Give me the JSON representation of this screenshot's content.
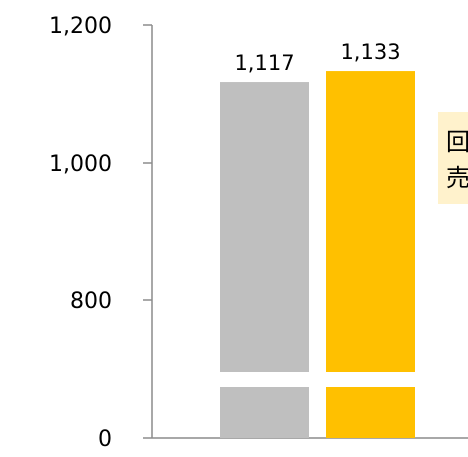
{
  "chart_data": {
    "type": "bar",
    "categories": [
      "",
      ""
    ],
    "values": [
      1117,
      1133
    ],
    "data_labels": [
      "1,117",
      "1,133"
    ],
    "colors": [
      "#bfbfbf",
      "#ffc000"
    ],
    "axis_break": true,
    "y_ticks": [
      {
        "value": 0,
        "label": "0"
      },
      {
        "value": 800,
        "label": "800"
      },
      {
        "value": 1000,
        "label": "1,000"
      },
      {
        "value": 1200,
        "label": "1,200"
      }
    ],
    "ylim": [
      0,
      1200
    ],
    "grid": false,
    "annotation": {
      "lines": [
        "回",
        "売"
      ],
      "background": "#fff2cc"
    }
  }
}
